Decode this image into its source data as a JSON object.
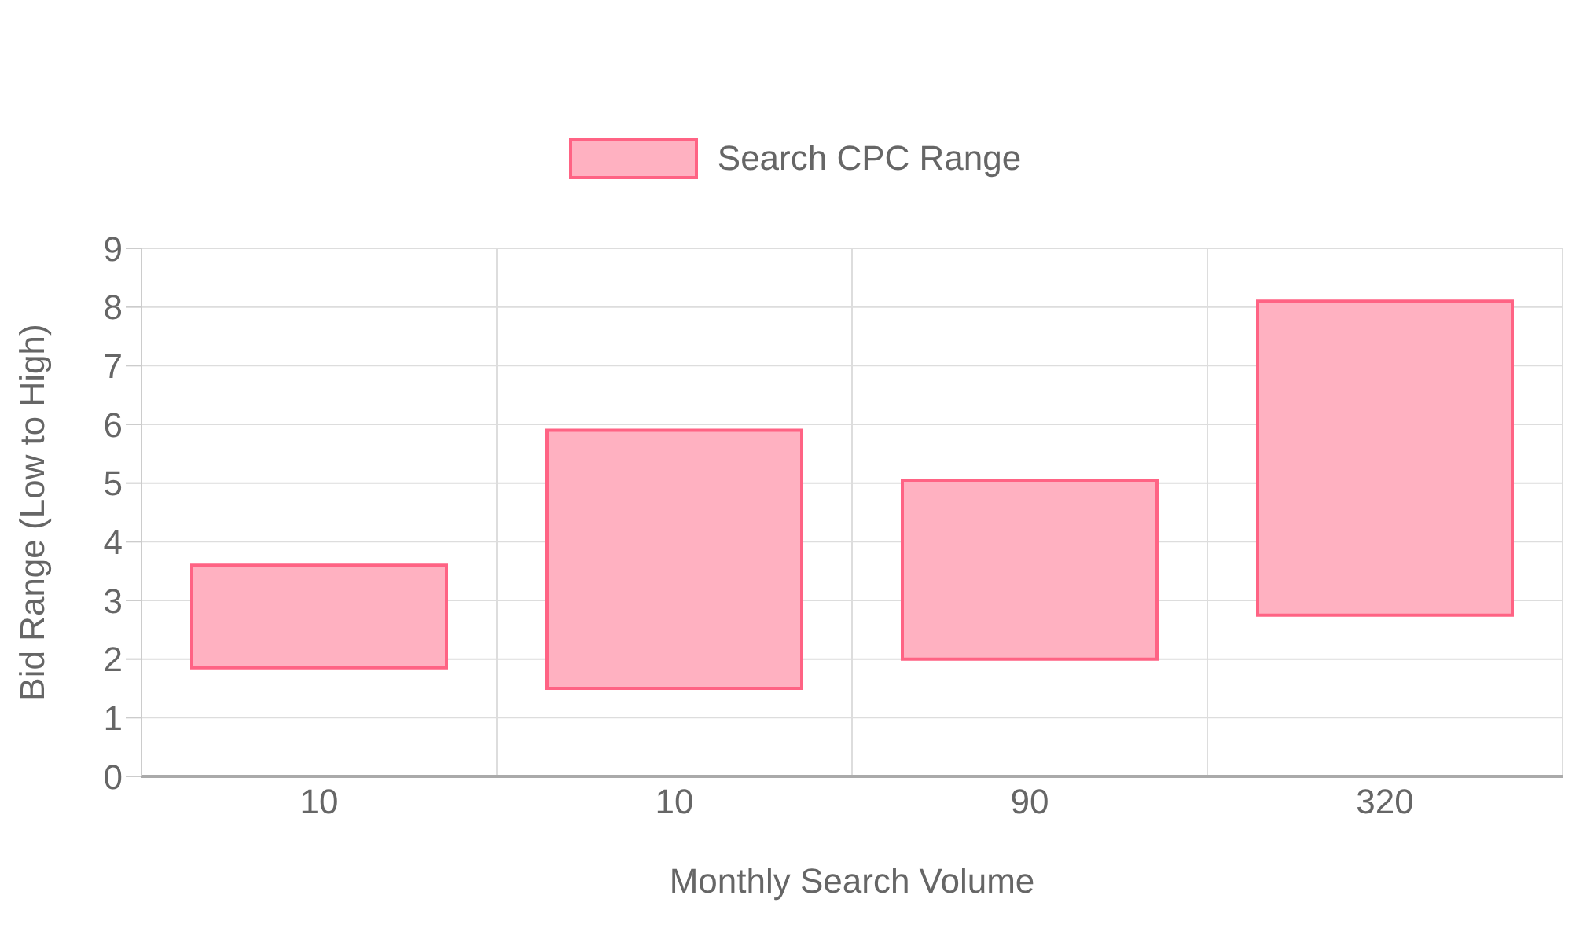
{
  "chart_data": {
    "type": "bar",
    "xlabel": "Monthly Search Volume",
    "ylabel": "Bid Range (Low to High)",
    "categories": [
      "10",
      "10",
      "90",
      "320"
    ],
    "series": [
      {
        "name": "Search CPC Range",
        "color": "#ffb1c1",
        "base": [
          1.85,
          1.5,
          2.0,
          2.75
        ],
        "values": [
          1.75,
          4.4,
          3.05,
          5.35
        ]
      }
    ],
    "ylim": [
      0,
      9
    ],
    "yticks": [
      0,
      1,
      2,
      3,
      4,
      5,
      6,
      7,
      8,
      9
    ],
    "grid": true,
    "legend": "top"
  }
}
